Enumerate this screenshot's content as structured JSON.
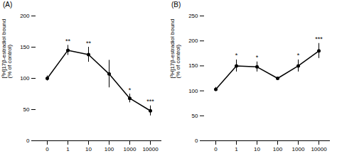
{
  "chart_data": [
    {
      "type": "line",
      "title": "(A)",
      "ylabel": "[³H]17β-estradiol bound\n(% of control)",
      "categories": [
        "0",
        "1",
        "10",
        "100",
        "1000",
        "10000"
      ],
      "values": [
        100,
        145,
        138,
        107,
        68,
        48
      ],
      "yerr": [
        4,
        8,
        12,
        22,
        7,
        8
      ],
      "sig_labels": [
        null,
        "**",
        "**",
        null,
        "*",
        "***"
      ],
      "marker": "circle",
      "ylim": [
        0,
        200
      ],
      "yticks": [
        0,
        50,
        100,
        150,
        200
      ]
    },
    {
      "type": "line",
      "title": "(B)",
      "ylabel": "[³H]17β-estradiol bound\n(% of control)",
      "categories": [
        "0",
        "1",
        "10",
        "100",
        "1000",
        "10000"
      ],
      "values": [
        103,
        150,
        148,
        125,
        150,
        180
      ],
      "yerr": [
        4,
        12,
        10,
        0,
        12,
        15
      ],
      "sig_labels": [
        null,
        "*",
        "*",
        null,
        "*",
        "***"
      ],
      "marker": "circle",
      "ylim": [
        0,
        250
      ],
      "yticks": [
        0,
        50,
        100,
        150,
        200,
        250
      ]
    }
  ]
}
